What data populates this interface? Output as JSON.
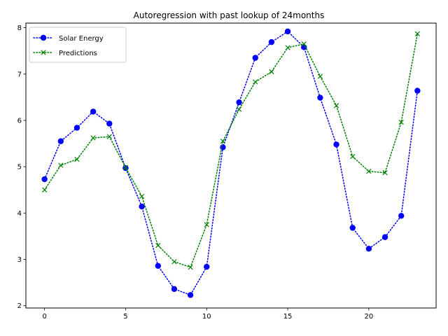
{
  "chart_data": {
    "type": "line",
    "title": "Autoregression with past lookup of 24months",
    "xlabel": "",
    "ylabel": "",
    "xlim": [
      -1.15,
      24.15
    ],
    "ylim": [
      1.95,
      8.1
    ],
    "xticks": [
      0,
      5,
      10,
      15,
      20
    ],
    "yticks": [
      2,
      3,
      4,
      5,
      6,
      7,
      8
    ],
    "grid": false,
    "legend_position": "upper left",
    "x": [
      0,
      1,
      2,
      3,
      4,
      5,
      6,
      7,
      8,
      9,
      10,
      11,
      12,
      13,
      14,
      15,
      16,
      17,
      18,
      19,
      20,
      21,
      22,
      23
    ],
    "series": [
      {
        "name": "Solar Energy",
        "color": "#0000ff",
        "marker": "circle",
        "linestyle": "dotted",
        "values": [
          4.73,
          5.55,
          5.84,
          6.19,
          5.93,
          4.97,
          4.14,
          2.86,
          2.36,
          2.23,
          2.84,
          5.42,
          6.39,
          7.35,
          7.69,
          7.92,
          7.58,
          6.49,
          5.48,
          3.68,
          3.23,
          3.48,
          3.94,
          6.64
        ]
      },
      {
        "name": "Predictions",
        "color": "#008000",
        "marker": "x",
        "linestyle": "dotted",
        "values": [
          4.5,
          5.03,
          5.16,
          5.62,
          5.65,
          4.98,
          4.36,
          3.3,
          2.95,
          2.83,
          3.75,
          5.55,
          6.24,
          6.83,
          7.05,
          7.57,
          7.65,
          6.95,
          6.32,
          5.22,
          4.9,
          4.87,
          5.96,
          7.87
        ]
      }
    ]
  }
}
